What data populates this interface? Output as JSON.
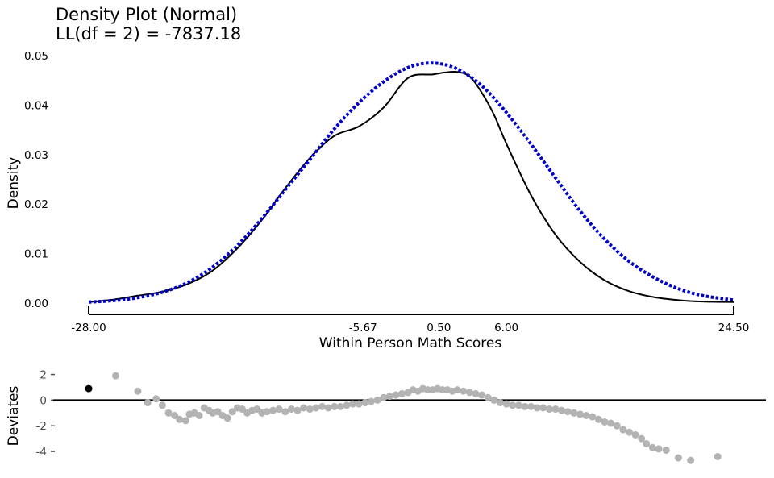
{
  "chart_data": [
    {
      "type": "line",
      "title": "Density Plot (Normal)",
      "subtitle": "LL(df = 2) = -7837.18",
      "xlabel": "Within Person Math Scores",
      "ylabel": "Density",
      "xlim": [
        -28.0,
        24.5
      ],
      "ylim": [
        0,
        0.05
      ],
      "x_ticks": [
        "-28.00",
        "-5.67",
        "0.50",
        "6.00",
        "24.50"
      ],
      "y_ticks": [
        "0.00",
        "0.01",
        "0.02",
        "0.03",
        "0.04",
        "0.05"
      ],
      "grid": false,
      "colors": {
        "empirical": "#000000",
        "normal": "#0000cd"
      },
      "series": [
        {
          "style": "solid",
          "x": [
            -28.0,
            -26.0,
            -24.0,
            -22.0,
            -20.0,
            -18.0,
            -16.0,
            -14.0,
            -12.0,
            -10.0,
            -8.0,
            -6.0,
            -4.0,
            -2.0,
            0.0,
            1.0,
            2.0,
            3.0,
            4.0,
            5.0,
            6.0,
            8.0,
            10.0,
            12.0,
            14.0,
            16.0,
            18.0,
            20.0,
            22.0,
            24.5
          ],
          "y": [
            0.0002,
            0.0007,
            0.0015,
            0.0023,
            0.0038,
            0.0064,
            0.0108,
            0.0165,
            0.0232,
            0.0293,
            0.0338,
            0.0357,
            0.0395,
            0.0455,
            0.0462,
            0.0466,
            0.0467,
            0.0458,
            0.0425,
            0.038,
            0.0322,
            0.0218,
            0.0138,
            0.0083,
            0.0046,
            0.0024,
            0.0012,
            0.0006,
            0.0003,
            0.0002
          ]
        },
        {
          "style": "dotted",
          "x": [
            -28.0,
            -26.0,
            -24.0,
            -22.0,
            -20.0,
            -18.0,
            -16.0,
            -14.0,
            -12.0,
            -10.0,
            -8.0,
            -6.0,
            -4.0,
            -2.0,
            0.0,
            2.0,
            4.0,
            6.0,
            8.0,
            10.0,
            12.0,
            14.0,
            16.0,
            18.0,
            20.0,
            22.0,
            24.5
          ],
          "y": [
            0.0002,
            0.0005,
            0.0011,
            0.0022,
            0.0041,
            0.0071,
            0.0114,
            0.0168,
            0.0229,
            0.029,
            0.0352,
            0.0405,
            0.0447,
            0.0476,
            0.0485,
            0.0473,
            0.0439,
            0.0385,
            0.0321,
            0.0253,
            0.0186,
            0.0129,
            0.0084,
            0.0052,
            0.0029,
            0.0015,
            0.0006
          ]
        }
      ]
    },
    {
      "type": "scatter",
      "ylabel": "Deviates",
      "ylim": [
        -5,
        2.6
      ],
      "y_ticks": [
        "2",
        "0",
        "-2",
        "-4"
      ],
      "y_tick_values": [
        2,
        0,
        -2,
        -4
      ],
      "reference_line": 0,
      "colors": {
        "points": "#b3b3b3",
        "highlight": "#000000",
        "zero_line": "#000000"
      },
      "highlight_point": {
        "x": -28.0,
        "y": 0.9
      },
      "points": [
        [
          -25.8,
          1.9
        ],
        [
          -24.0,
          0.7
        ],
        [
          -23.2,
          -0.2
        ],
        [
          -22.5,
          0.1
        ],
        [
          -22.0,
          -0.4
        ],
        [
          -21.5,
          -1.0
        ],
        [
          -21.0,
          -1.2
        ],
        [
          -20.6,
          -1.5
        ],
        [
          -20.1,
          -1.6
        ],
        [
          -19.8,
          -1.1
        ],
        [
          -19.4,
          -1.0
        ],
        [
          -19.0,
          -1.2
        ],
        [
          -18.6,
          -0.6
        ],
        [
          -18.2,
          -0.8
        ],
        [
          -17.9,
          -1.0
        ],
        [
          -17.5,
          -0.9
        ],
        [
          -17.1,
          -1.2
        ],
        [
          -16.7,
          -1.4
        ],
        [
          -16.3,
          -0.9
        ],
        [
          -15.9,
          -0.6
        ],
        [
          -15.5,
          -0.7
        ],
        [
          -15.1,
          -1.0
        ],
        [
          -14.7,
          -0.8
        ],
        [
          -14.3,
          -0.7
        ],
        [
          -13.9,
          -1.0
        ],
        [
          -13.5,
          -0.9
        ],
        [
          -13.0,
          -0.8
        ],
        [
          -12.5,
          -0.7
        ],
        [
          -12.0,
          -0.9
        ],
        [
          -11.5,
          -0.7
        ],
        [
          -11.0,
          -0.8
        ],
        [
          -10.5,
          -0.6
        ],
        [
          -10.0,
          -0.7
        ],
        [
          -9.5,
          -0.6
        ],
        [
          -9.0,
          -0.5
        ],
        [
          -8.5,
          -0.6
        ],
        [
          -8.0,
          -0.5
        ],
        [
          -7.5,
          -0.5
        ],
        [
          -7.0,
          -0.4
        ],
        [
          -6.5,
          -0.3
        ],
        [
          -6.0,
          -0.3
        ],
        [
          -5.5,
          -0.2
        ],
        [
          -5.0,
          -0.1
        ],
        [
          -4.5,
          0.0
        ],
        [
          -4.0,
          0.2
        ],
        [
          -3.5,
          0.3
        ],
        [
          -3.0,
          0.4
        ],
        [
          -2.5,
          0.5
        ],
        [
          -2.0,
          0.6
        ],
        [
          -1.6,
          0.8
        ],
        [
          -1.2,
          0.7
        ],
        [
          -0.8,
          0.9
        ],
        [
          -0.4,
          0.8
        ],
        [
          0.0,
          0.8
        ],
        [
          0.4,
          0.9
        ],
        [
          0.8,
          0.8
        ],
        [
          1.2,
          0.8
        ],
        [
          1.6,
          0.7
        ],
        [
          2.0,
          0.8
        ],
        [
          2.5,
          0.7
        ],
        [
          3.0,
          0.6
        ],
        [
          3.5,
          0.5
        ],
        [
          4.0,
          0.4
        ],
        [
          4.5,
          0.2
        ],
        [
          5.0,
          0.0
        ],
        [
          5.5,
          -0.2
        ],
        [
          6.0,
          -0.3
        ],
        [
          6.5,
          -0.4
        ],
        [
          7.0,
          -0.4
        ],
        [
          7.5,
          -0.5
        ],
        [
          8.0,
          -0.5
        ],
        [
          8.5,
          -0.6
        ],
        [
          9.0,
          -0.6
        ],
        [
          9.5,
          -0.7
        ],
        [
          10.0,
          -0.7
        ],
        [
          10.5,
          -0.8
        ],
        [
          11.0,
          -0.9
        ],
        [
          11.5,
          -1.0
        ],
        [
          12.0,
          -1.1
        ],
        [
          12.5,
          -1.2
        ],
        [
          13.0,
          -1.3
        ],
        [
          13.5,
          -1.5
        ],
        [
          14.0,
          -1.7
        ],
        [
          14.5,
          -1.8
        ],
        [
          15.0,
          -2.0
        ],
        [
          15.5,
          -2.3
        ],
        [
          16.0,
          -2.5
        ],
        [
          16.5,
          -2.7
        ],
        [
          17.0,
          -3.0
        ],
        [
          17.4,
          -3.4
        ],
        [
          17.9,
          -3.7
        ],
        [
          18.4,
          -3.8
        ],
        [
          19.0,
          -3.9
        ],
        [
          20.0,
          -4.5
        ],
        [
          21.0,
          -4.7
        ],
        [
          23.2,
          -4.4
        ]
      ]
    }
  ]
}
